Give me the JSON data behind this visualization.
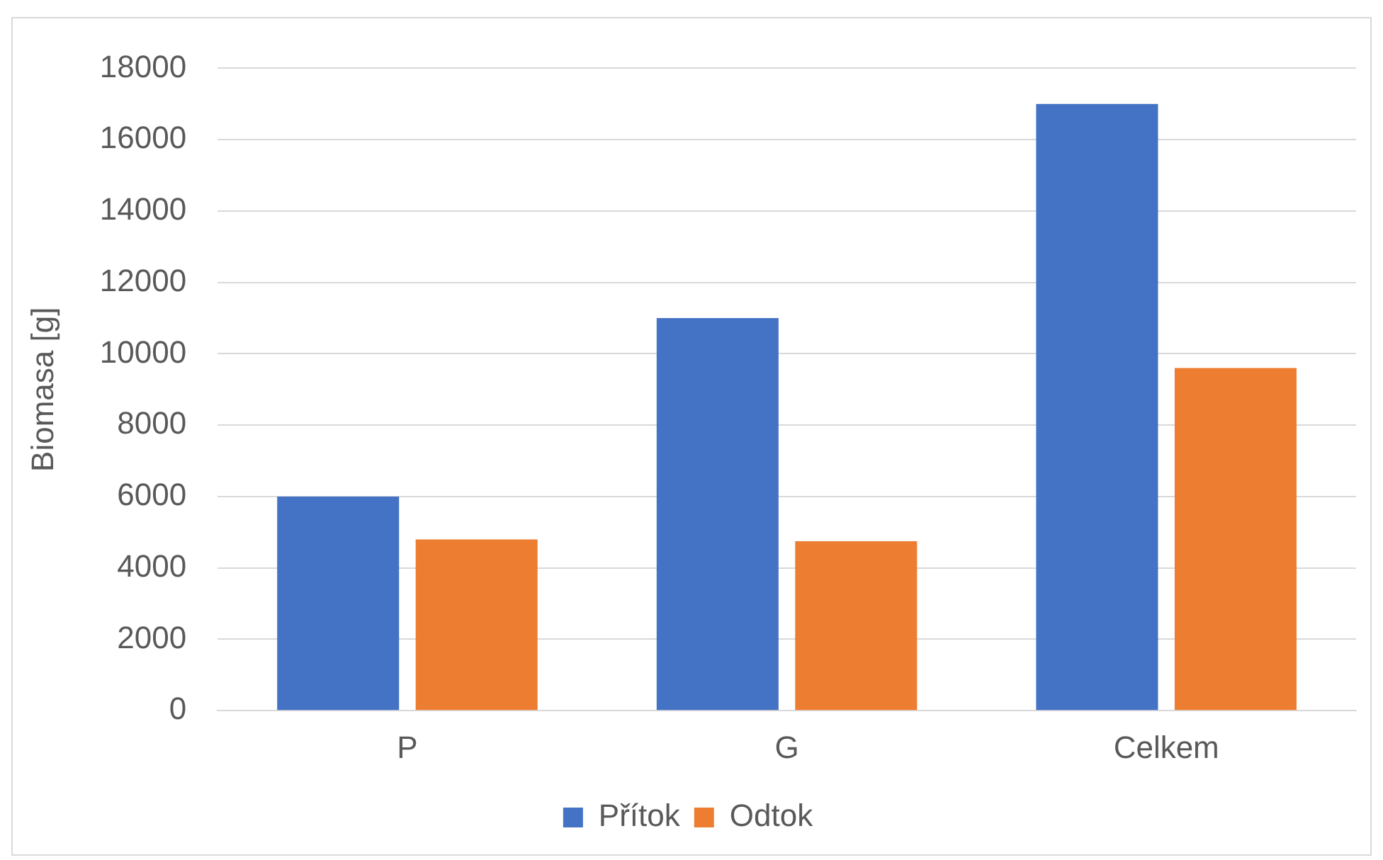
{
  "chart_data": {
    "type": "bar",
    "ylabel": "Biomasa [g]",
    "categories": [
      "P",
      "G",
      "Celkem"
    ],
    "series": [
      {
        "name": "Přítok",
        "color": "#4472c4",
        "values": [
          6000,
          11000,
          17000
        ]
      },
      {
        "name": "Odtok",
        "color": "#ed7d31",
        "values": [
          4800,
          4750,
          9600
        ]
      }
    ],
    "ylim": [
      0,
      18000
    ],
    "yticks": [
      0,
      2000,
      4000,
      6000,
      8000,
      10000,
      12000,
      14000,
      16000,
      18000
    ],
    "grid": "y",
    "legend": "bottom"
  }
}
